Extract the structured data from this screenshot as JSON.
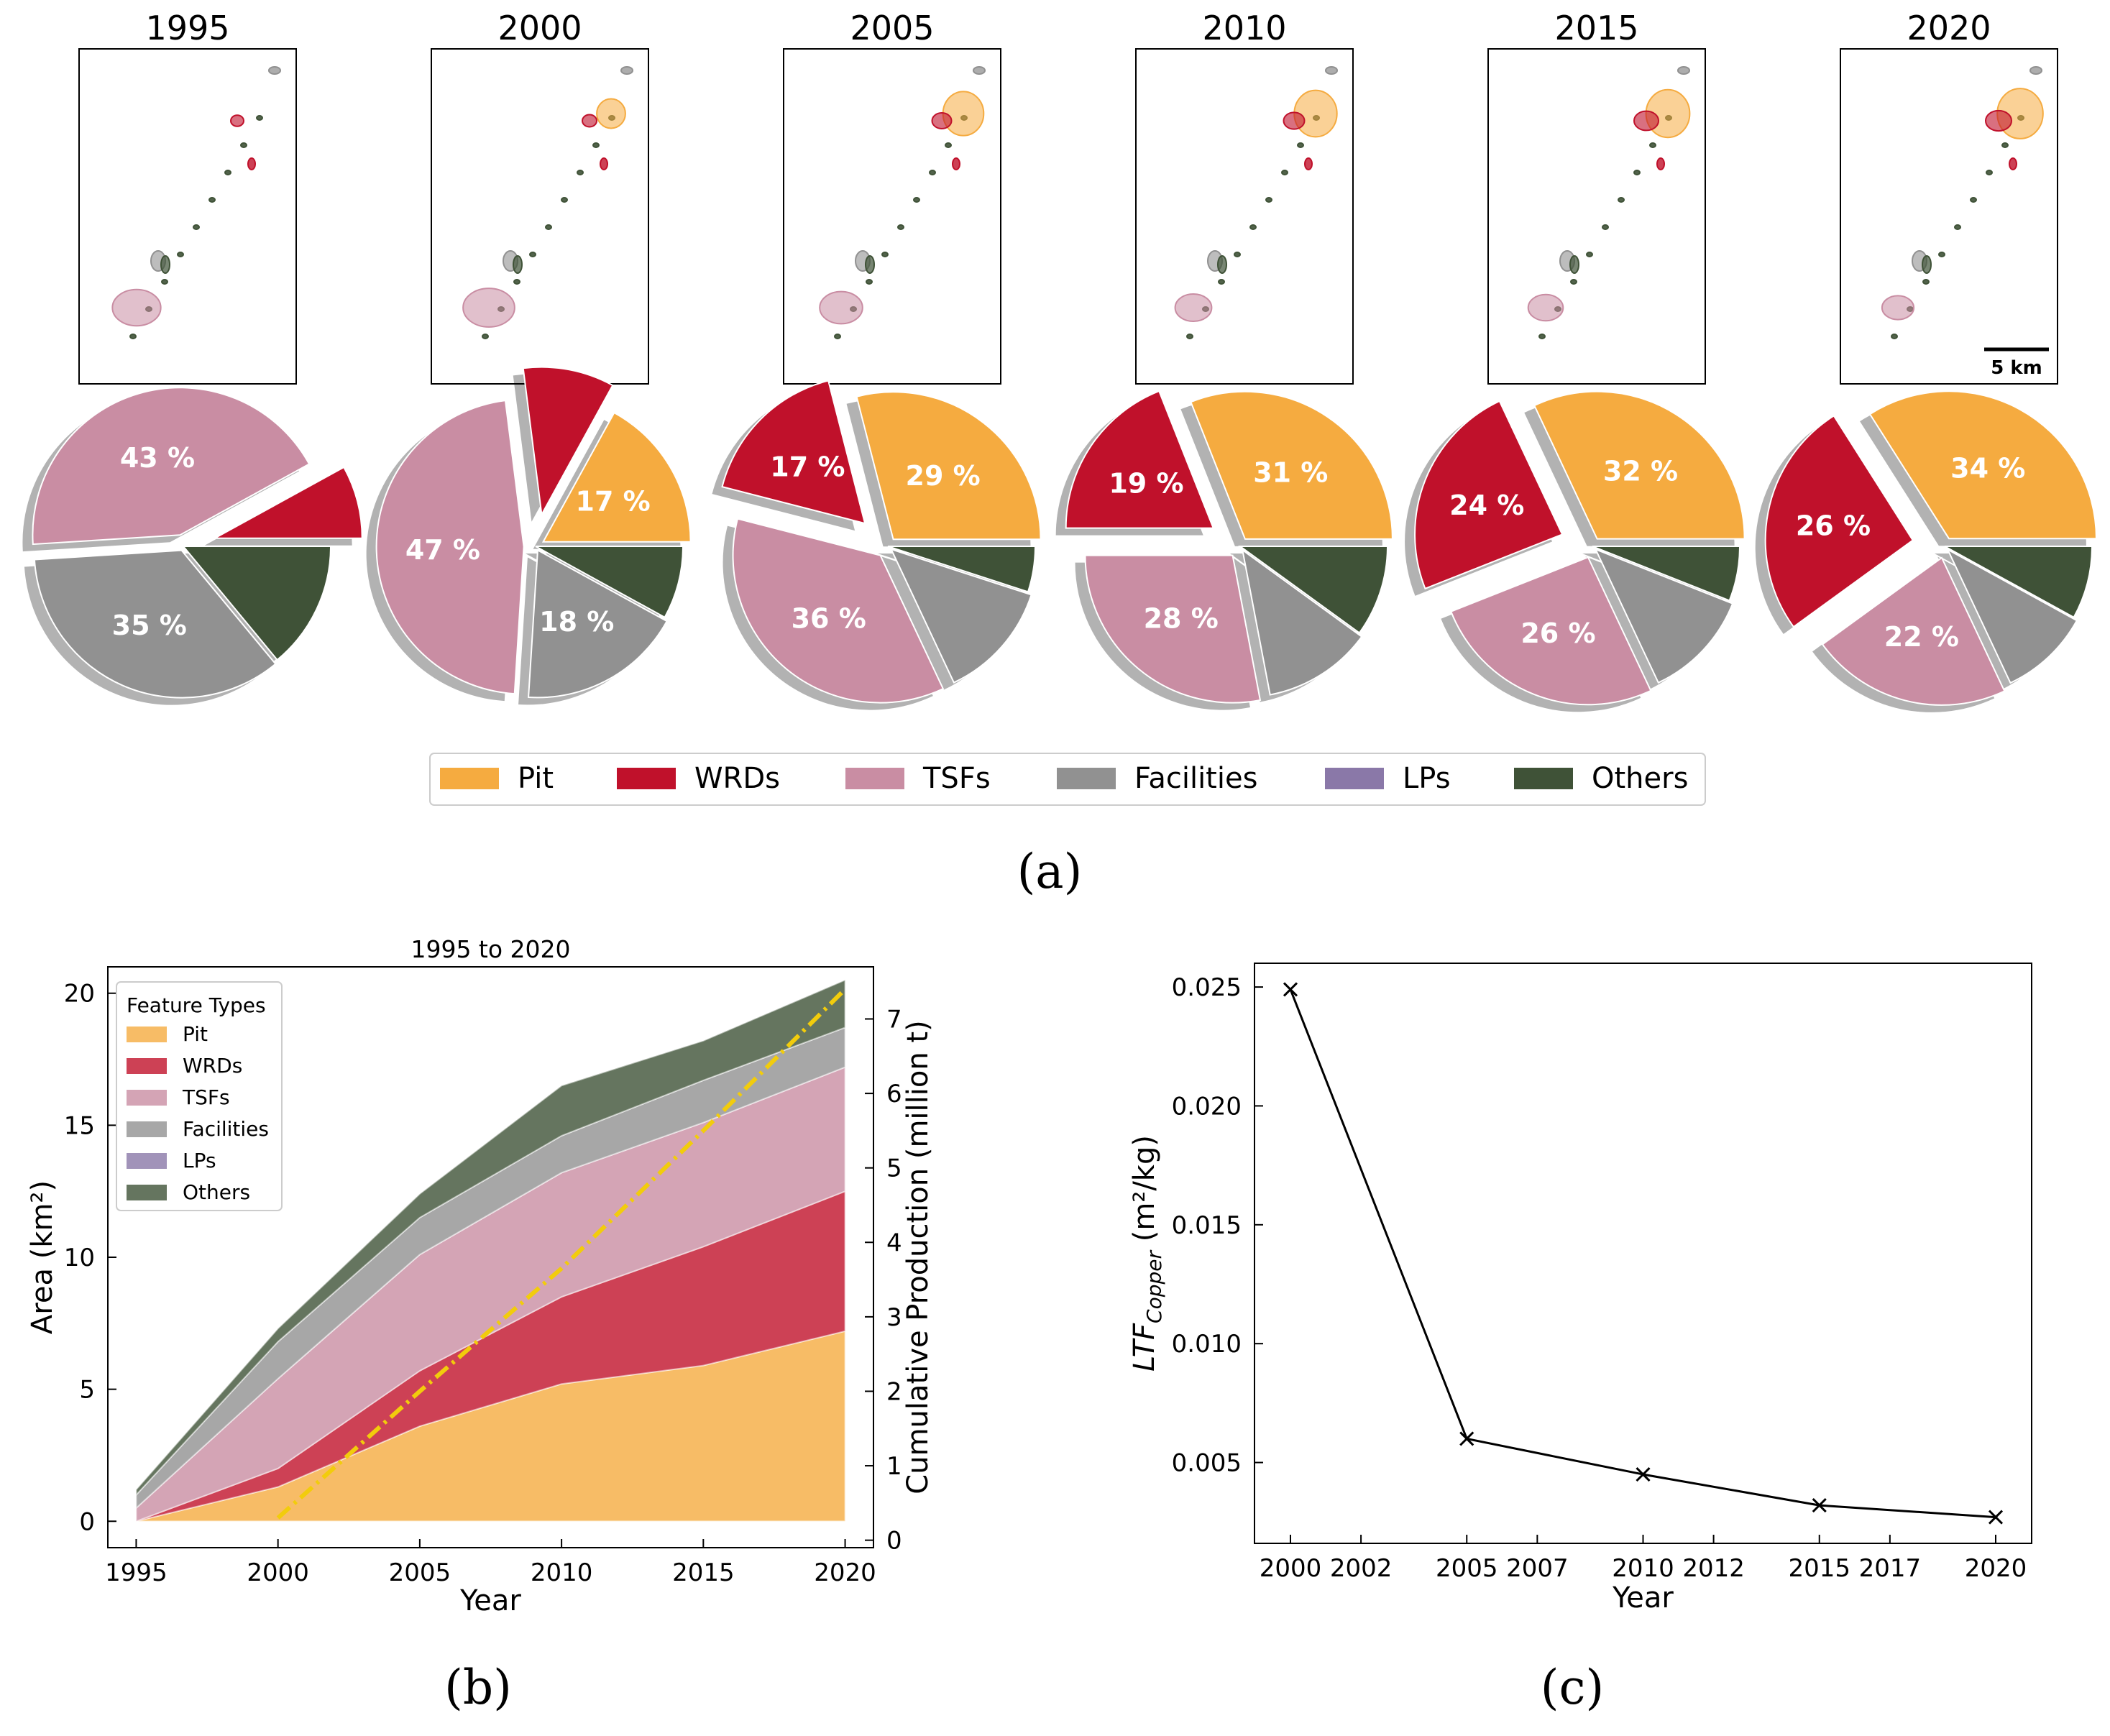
{
  "colors": {
    "pit": "#F5AB40",
    "wrds": "#C0112B",
    "tsfs": "#C98DA3",
    "facilities": "#919191",
    "lps": "#8A78A8",
    "others": "#3F5237",
    "production_line": "#F2CC0C"
  },
  "panel_labels": {
    "a": "(a)",
    "b": "(b)",
    "c": "(c)"
  },
  "panel_a": {
    "years": [
      "1995",
      "2000",
      "2005",
      "2010",
      "2015",
      "2020"
    ],
    "scale_bar": "5 km",
    "pies": [
      {
        "year": "1995",
        "shares": {
          "pit": 0,
          "wrds": 8,
          "tsfs": 43,
          "facilities": 35,
          "lps": 0,
          "others": 14
        },
        "labels": {
          "tsfs": "43 %",
          "facilities": "35 %"
        }
      },
      {
        "year": "2000",
        "shares": {
          "pit": 17,
          "wrds": 10,
          "tsfs": 47,
          "facilities": 18,
          "lps": 0,
          "others": 8
        },
        "labels": {
          "pit": "17 %",
          "tsfs": "47 %",
          "facilities": "18 %"
        }
      },
      {
        "year": "2005",
        "shares": {
          "pit": 29,
          "wrds": 17,
          "tsfs": 36,
          "facilities": 13,
          "lps": 0,
          "others": 5
        },
        "labels": {
          "pit": "29 %",
          "wrds": "17 %",
          "tsfs": "36 %"
        }
      },
      {
        "year": "2010",
        "shares": {
          "pit": 31,
          "wrds": 19,
          "tsfs": 28,
          "facilities": 12,
          "lps": 0,
          "others": 10
        },
        "labels": {
          "pit": "31 %",
          "wrds": "19 %",
          "tsfs": "28 %"
        }
      },
      {
        "year": "2015",
        "shares": {
          "pit": 32,
          "wrds": 24,
          "tsfs": 26,
          "facilities": 12,
          "lps": 0,
          "others": 6
        },
        "labels": {
          "pit": "32 %",
          "wrds": "24 %",
          "tsfs": "26 %"
        }
      },
      {
        "year": "2020",
        "shares": {
          "pit": 34,
          "wrds": 26,
          "tsfs": 22,
          "facilities": 10,
          "lps": 0,
          "others": 8
        },
        "labels": {
          "pit": "34 %",
          "wrds": "26 %",
          "tsfs": "22 %"
        }
      }
    ],
    "legend": [
      {
        "key": "pit",
        "label": "Pit"
      },
      {
        "key": "wrds",
        "label": "WRDs"
      },
      {
        "key": "tsfs",
        "label": "TSFs"
      },
      {
        "key": "facilities",
        "label": "Facilities"
      },
      {
        "key": "lps",
        "label": "LPs"
      },
      {
        "key": "others",
        "label": "Others"
      }
    ]
  },
  "chart_data": [
    {
      "type": "area",
      "title": "1995 to 2020",
      "xlabel": "Year",
      "ylabel": "Area (km²)",
      "ylabel_right": "Cumulative Production (million t)",
      "x": [
        1995,
        2000,
        2005,
        2010,
        2015,
        2020
      ],
      "xlim": [
        1994,
        2021
      ],
      "ylim": [
        -1,
        21
      ],
      "ylim_right": [
        -0.1,
        7.7
      ],
      "xticks": [
        "1995",
        "2000",
        "2005",
        "2010",
        "2015",
        "2020"
      ],
      "yticks": [
        "0",
        "5",
        "10",
        "15",
        "20"
      ],
      "yticks_right": [
        "0",
        "1",
        "2",
        "3",
        "4",
        "5",
        "6",
        "7"
      ],
      "legend_title": "Feature Types",
      "series": [
        {
          "key": "pit",
          "name": "Pit",
          "values": [
            0,
            1.3,
            3.6,
            5.2,
            5.9,
            7.2
          ]
        },
        {
          "key": "wrds",
          "name": "WRDs",
          "values": [
            0,
            0.7,
            2.1,
            3.3,
            4.5,
            5.3
          ]
        },
        {
          "key": "tsfs",
          "name": "TSFs",
          "values": [
            0.5,
            3.4,
            4.4,
            4.7,
            4.7,
            4.7
          ]
        },
        {
          "key": "facilities",
          "name": "Facilities",
          "values": [
            0.5,
            1.4,
            1.4,
            1.4,
            1.6,
            1.5
          ]
        },
        {
          "key": "lps",
          "name": "LPs",
          "values": [
            0,
            0,
            0,
            0,
            0,
            0
          ]
        },
        {
          "key": "others",
          "name": "Others",
          "values": [
            0.2,
            0.5,
            0.9,
            1.9,
            1.5,
            1.8
          ]
        }
      ],
      "production": {
        "name": "Cumulative Production",
        "x": [
          2000,
          2005,
          2010,
          2015,
          2020
        ],
        "values": [
          0.3,
          2.0,
          3.65,
          5.5,
          7.4
        ]
      }
    },
    {
      "type": "line",
      "title": "",
      "xlabel": "Year",
      "ylabel_main": "LTF",
      "ylabel_sub": "Copper",
      "ylabel_unit": " (m²/kg)",
      "x": [
        2000,
        2005,
        2010,
        2015,
        2020
      ],
      "values": [
        0.0249,
        0.006,
        0.0045,
        0.0032,
        0.0027
      ],
      "xlim": [
        2000,
        2020
      ],
      "ylim": [
        0.0016,
        0.026
      ],
      "xticks": [
        "2000",
        "2002",
        "2005",
        "2007",
        "2010",
        "2012",
        "2015",
        "2017",
        "2020"
      ],
      "yticks": [
        "0.005",
        "0.010",
        "0.015",
        "0.020",
        "0.025"
      ],
      "marker": "x"
    }
  ]
}
